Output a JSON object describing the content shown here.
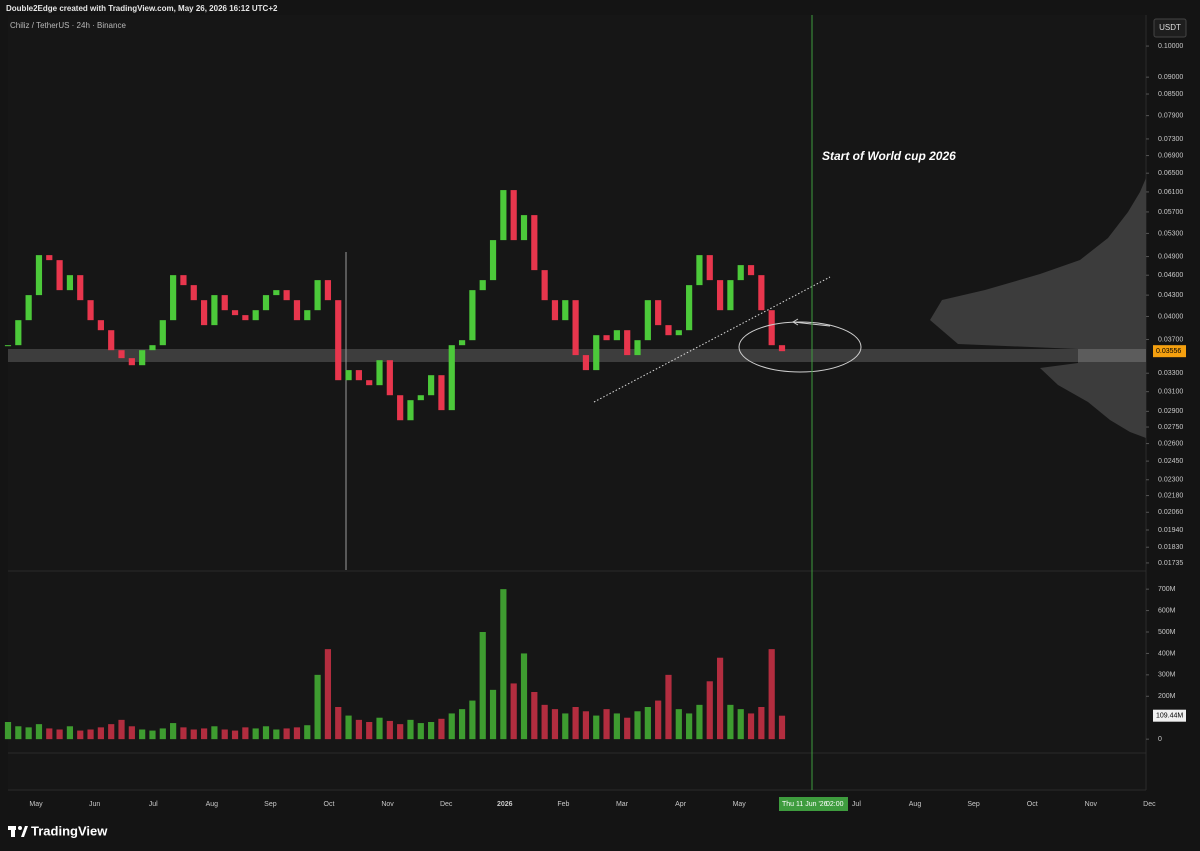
{
  "header": {
    "credit": "Double2Edge created with TradingView.com, May 26, 2026 16:12 UTC+2",
    "logo": "TradingView"
  },
  "chart_data": {
    "type": "candlestick",
    "title": "Chiliz / TetherUS · 24h · Binance",
    "currency": "USDT",
    "up_color": "#4cc93a",
    "down_color": "#e8364d",
    "log_scale": true,
    "close": [
      0.03629,
      0.0395,
      0.043,
      0.04924,
      0.04841,
      0.04373,
      0.04601,
      0.04227,
      0.0395,
      0.03818,
      0.03568,
      0.03473,
      0.03391,
      0.03568,
      0.03629,
      0.0395,
      0.04601,
      0.04448,
      0.04227,
      0.03884,
      0.043,
      0.04086,
      0.04018,
      0.0395,
      0.04086,
      0.043,
      0.04373,
      0.04227,
      0.0395,
      0.04086,
      0.04524,
      0.04227,
      0.03223,
      0.03335,
      0.03223,
      0.03169,
      0.03449,
      0.03063,
      0.02814,
      0.03012,
      0.03063,
      0.03278,
      0.02912,
      0.03629,
      0.03691,
      0.04373,
      0.04524,
      0.05181,
      0.06138,
      0.05181,
      0.05639,
      0.0468,
      0.04227,
      0.0395,
      0.04227,
      0.03509,
      0.03335,
      0.03754,
      0.03691,
      0.03818,
      0.03509,
      0.03691,
      0.04227,
      0.03884,
      0.03754,
      0.03818,
      0.04448,
      0.04924,
      0.04524,
      0.04086,
      0.04524,
      0.0476,
      0.04601,
      0.04086,
      0.03629,
      0.03556
    ],
    "ylim": [
      0.01694,
      0.1111
    ],
    "yticks": [
      {
        "value": 0.1,
        "label": "0.10000"
      },
      {
        "value": 0.09,
        "label": "0.09000"
      },
      {
        "value": 0.085,
        "label": "0.08500"
      },
      {
        "value": 0.079,
        "label": "0.07900"
      },
      {
        "value": 0.073,
        "label": "0.07300"
      },
      {
        "value": 0.069,
        "label": "0.06900"
      },
      {
        "value": 0.065,
        "label": "0.06500"
      },
      {
        "value": 0.061,
        "label": "0.06100"
      },
      {
        "value": 0.057,
        "label": "0.05700"
      },
      {
        "value": 0.053,
        "label": "0.05300"
      },
      {
        "value": 0.049,
        "label": "0.04900"
      },
      {
        "value": 0.046,
        "label": "0.04600"
      },
      {
        "value": 0.043,
        "label": "0.04300"
      },
      {
        "value": 0.04,
        "label": "0.04000"
      },
      {
        "value": 0.037,
        "label": "0.03700"
      },
      {
        "value": 0.033,
        "label": "0.03300"
      },
      {
        "value": 0.031,
        "label": "0.03100"
      },
      {
        "value": 0.029,
        "label": "0.02900"
      },
      {
        "value": 0.0275,
        "label": "0.02750"
      },
      {
        "value": 0.026,
        "label": "0.02600"
      },
      {
        "value": 0.0245,
        "label": "0.02450"
      },
      {
        "value": 0.023,
        "label": "0.02300"
      },
      {
        "value": 0.0218,
        "label": "0.02180"
      },
      {
        "value": 0.0206,
        "label": "0.02060"
      },
      {
        "value": 0.0194,
        "label": "0.01940"
      },
      {
        "value": 0.0183,
        "label": "0.01830"
      },
      {
        "value": 0.01735,
        "label": "0.01735"
      }
    ],
    "current_price": 0.03556,
    "volume": [
      80,
      60,
      55,
      70,
      50,
      45,
      60,
      40,
      45,
      55,
      70,
      90,
      60,
      45,
      40,
      50,
      75,
      55,
      45,
      50,
      60,
      45,
      40,
      55,
      50,
      60,
      45,
      50,
      55,
      65,
      300,
      420,
      150,
      110,
      90,
      80,
      100,
      85,
      70,
      90,
      75,
      80,
      95,
      120,
      140,
      180,
      500,
      230,
      700,
      260,
      400,
      220,
      160,
      140,
      120,
      150,
      130,
      110,
      140,
      120,
      100,
      130,
      150,
      180,
      300,
      140,
      120,
      160,
      270,
      380,
      160,
      140,
      120,
      150,
      420,
      109.44
    ],
    "volume_ylim": [
      -60,
      780
    ],
    "volume_ticks": [
      0,
      {
        "value": 200,
        "label": "200M"
      },
      {
        "value": 300,
        "label": "300M"
      },
      {
        "value": 400,
        "label": "400M"
      },
      {
        "value": 500,
        "label": "500M"
      },
      {
        "value": 600,
        "label": "600M"
      },
      {
        "value": 700,
        "label": "700M"
      }
    ],
    "current_volume": {
      "value": 109.44,
      "label": "109.44M"
    },
    "time_labels": [
      "May",
      "Jun",
      "Jul",
      "Aug",
      "Sep",
      "Oct",
      "Nov",
      "Dec",
      "2026",
      "Feb",
      "Mar",
      "Apr",
      "May",
      null,
      "Jul",
      "Aug",
      "Sep",
      "Oct",
      "Nov",
      "Dec"
    ],
    "crosshair_date": "Thu 11 Jun '26",
    "crosshair_time": "02:00",
    "annotation": "Start of World cup 2026"
  }
}
